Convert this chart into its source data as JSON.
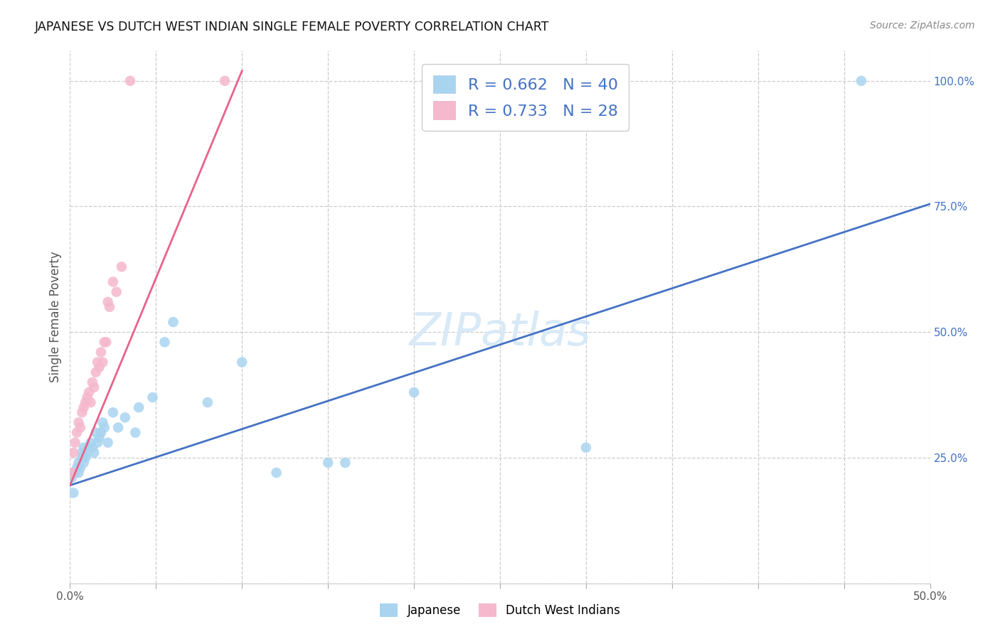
{
  "title": "JAPANESE VS DUTCH WEST INDIAN SINGLE FEMALE POVERTY CORRELATION CHART",
  "source": "Source: ZipAtlas.com",
  "ylabel": "Single Female Poverty",
  "r_blue": 0.662,
  "n_blue": 40,
  "r_pink": 0.733,
  "n_pink": 28,
  "blue_scatter": "#a8d4f0",
  "pink_scatter": "#f5b8cc",
  "blue_line": "#4472c4",
  "pink_line": "#e8638a",
  "blue_text": "#4472c4",
  "watermark_color": "#d8e9f7",
  "grid_color": "#cccccc",
  "title_color": "#111111",
  "source_color": "#888888",
  "label_color": "#555555",
  "tick_color_y": "#4472c4",
  "tick_color_x": "#555555",
  "japanese_x": [
    0.001,
    0.002,
    0.003,
    0.004,
    0.005,
    0.005,
    0.006,
    0.007,
    0.007,
    0.008,
    0.008,
    0.009,
    0.01,
    0.011,
    0.012,
    0.013,
    0.014,
    0.015,
    0.016,
    0.017,
    0.018,
    0.019,
    0.02,
    0.022,
    0.025,
    0.028,
    0.032,
    0.038,
    0.04,
    0.048,
    0.055,
    0.06,
    0.08,
    0.1,
    0.12,
    0.15,
    0.16,
    0.2,
    0.3,
    0.46
  ],
  "japanese_y": [
    0.21,
    0.18,
    0.22,
    0.23,
    0.22,
    0.24,
    0.23,
    0.25,
    0.26,
    0.24,
    0.27,
    0.25,
    0.26,
    0.27,
    0.28,
    0.27,
    0.26,
    0.3,
    0.28,
    0.29,
    0.3,
    0.32,
    0.31,
    0.28,
    0.34,
    0.31,
    0.33,
    0.3,
    0.35,
    0.37,
    0.48,
    0.52,
    0.36,
    0.44,
    0.22,
    0.24,
    0.24,
    0.38,
    0.27,
    1.0
  ],
  "dutch_x": [
    0.001,
    0.002,
    0.003,
    0.004,
    0.005,
    0.006,
    0.007,
    0.008,
    0.009,
    0.01,
    0.011,
    0.012,
    0.013,
    0.014,
    0.015,
    0.016,
    0.017,
    0.018,
    0.019,
    0.02,
    0.021,
    0.022,
    0.023,
    0.025,
    0.027,
    0.03,
    0.035,
    0.09
  ],
  "dutch_y": [
    0.22,
    0.26,
    0.28,
    0.3,
    0.32,
    0.31,
    0.34,
    0.35,
    0.36,
    0.37,
    0.38,
    0.36,
    0.4,
    0.39,
    0.42,
    0.44,
    0.43,
    0.46,
    0.44,
    0.48,
    0.48,
    0.56,
    0.55,
    0.6,
    0.58,
    0.63,
    1.0,
    1.0
  ],
  "x_ticks": [
    0.0,
    0.05,
    0.1,
    0.15,
    0.2,
    0.25,
    0.3,
    0.35,
    0.4,
    0.45,
    0.5
  ],
  "x_tick_labels": [
    "0.0%",
    "",
    "",
    "",
    "",
    "",
    "",
    "",
    "",
    "",
    "50.0%"
  ],
  "y_ticks": [
    0.0,
    0.25,
    0.5,
    0.75,
    1.0
  ],
  "y_tick_labels": [
    "",
    "25.0%",
    "50.0%",
    "75.0%",
    "100.0%"
  ],
  "x_lim": [
    0,
    0.5
  ],
  "y_lim": [
    0,
    1.06
  ],
  "blue_line_x0": 0.0,
  "blue_line_y0": 0.195,
  "blue_line_x1": 0.5,
  "blue_line_y1": 0.755,
  "pink_line_x0": 0.0,
  "pink_line_y0": 0.195,
  "pink_line_x1": 0.1,
  "pink_line_y1": 1.02
}
